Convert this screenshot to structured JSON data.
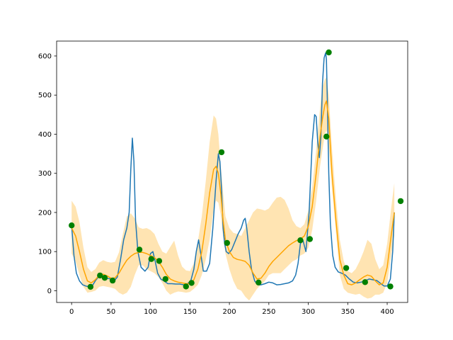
{
  "chart_data": {
    "type": "line",
    "title": "",
    "xlabel": "",
    "ylabel": "",
    "xlim": [
      -19,
      426
    ],
    "ylim": [
      -30,
      638
    ],
    "grid": false,
    "legend": "none",
    "xticks": [
      0,
      50,
      100,
      150,
      200,
      250,
      300,
      350,
      400
    ],
    "yticks": [
      0,
      100,
      200,
      300,
      400,
      500,
      600
    ],
    "colors": {
      "blue_line": "#1f77b4",
      "orange_line": "#ffa500",
      "band": "#ffa500",
      "points": "#008000",
      "axes": "#000000"
    },
    "series": [
      {
        "kind": "line",
        "color": "#1f77b4",
        "x": [
          0,
          3,
          6,
          10,
          14,
          18,
          22,
          26,
          30,
          35,
          40,
          45,
          50,
          55,
          58,
          62,
          66,
          70,
          73,
          75,
          77,
          79,
          81,
          84,
          88,
          93,
          97,
          100,
          103,
          106,
          109,
          113,
          117,
          122,
          127,
          132,
          137,
          142,
          147,
          151,
          155,
          158,
          161,
          164,
          167,
          171,
          175,
          179,
          183,
          186,
          188,
          190,
          192,
          194,
          196,
          199,
          203,
          207,
          211,
          215,
          218,
          220,
          222,
          225,
          228,
          232,
          236,
          240,
          245,
          250,
          255,
          260,
          265,
          270,
          275,
          280,
          284,
          287,
          290,
          293,
          297,
          301,
          305,
          308,
          310,
          312,
          314,
          316,
          318,
          320,
          322,
          323,
          324,
          326,
          328,
          331,
          334,
          338,
          342,
          347,
          352,
          357,
          362,
          367,
          372,
          377,
          382,
          387,
          392,
          396,
          400,
          404,
          407,
          409
        ],
        "y": [
          165,
          90,
          45,
          25,
          15,
          12,
          10,
          12,
          25,
          38,
          35,
          32,
          30,
          28,
          35,
          80,
          130,
          160,
          200,
          310,
          390,
          330,
          180,
          100,
          60,
          50,
          60,
          95,
          100,
          75,
          45,
          30,
          25,
          18,
          18,
          17,
          17,
          15,
          18,
          25,
          55,
          100,
          130,
          90,
          50,
          50,
          70,
          160,
          280,
          350,
          330,
          260,
          160,
          120,
          100,
          95,
          105,
          125,
          145,
          160,
          180,
          185,
          160,
          100,
          55,
          25,
          15,
          15,
          18,
          22,
          20,
          15,
          16,
          18,
          20,
          25,
          40,
          70,
          120,
          130,
          100,
          200,
          380,
          450,
          445,
          380,
          340,
          395,
          530,
          595,
          608,
          590,
          500,
          300,
          170,
          90,
          60,
          48,
          45,
          40,
          30,
          22,
          20,
          22,
          25,
          30,
          28,
          26,
          18,
          12,
          12,
          30,
          100,
          200
        ]
      },
      {
        "kind": "line",
        "color": "#ffa500",
        "x": [
          0,
          5,
          10,
          15,
          20,
          25,
          30,
          35,
          40,
          45,
          50,
          55,
          60,
          65,
          70,
          75,
          80,
          85,
          90,
          95,
          100,
          105,
          110,
          115,
          120,
          125,
          130,
          135,
          140,
          145,
          150,
          155,
          160,
          165,
          170,
          175,
          180,
          183,
          186,
          189,
          192,
          195,
          200,
          205,
          210,
          215,
          220,
          225,
          230,
          235,
          240,
          245,
          250,
          255,
          260,
          265,
          270,
          275,
          280,
          285,
          290,
          295,
          300,
          305,
          310,
          315,
          318,
          321,
          323,
          326,
          330,
          335,
          340,
          345,
          350,
          355,
          360,
          365,
          370,
          375,
          380,
          385,
          390,
          395,
          400,
          405,
          409
        ],
        "y": [
          160,
          140,
          100,
          55,
          25,
          20,
          28,
          40,
          42,
          38,
          32,
          33,
          45,
          62,
          78,
          88,
          95,
          98,
          98,
          95,
          90,
          85,
          75,
          60,
          42,
          30,
          25,
          22,
          20,
          18,
          18,
          28,
          55,
          100,
          170,
          250,
          310,
          318,
          300,
          250,
          180,
          130,
          100,
          85,
          80,
          78,
          75,
          65,
          45,
          30,
          32,
          45,
          62,
          75,
          85,
          95,
          105,
          115,
          122,
          128,
          132,
          140,
          165,
          215,
          300,
          395,
          440,
          475,
          485,
          440,
          300,
          180,
          80,
          40,
          18,
          15,
          20,
          28,
          35,
          40,
          37,
          25,
          15,
          20,
          60,
          140,
          200
        ]
      },
      {
        "kind": "band",
        "color": "#ffa500",
        "x": [
          0,
          5,
          10,
          15,
          20,
          25,
          30,
          35,
          40,
          45,
          50,
          55,
          60,
          65,
          70,
          75,
          80,
          85,
          90,
          95,
          100,
          105,
          110,
          115,
          120,
          125,
          130,
          135,
          140,
          145,
          150,
          155,
          160,
          165,
          170,
          175,
          180,
          183,
          186,
          189,
          192,
          195,
          200,
          205,
          210,
          215,
          220,
          225,
          230,
          235,
          240,
          245,
          250,
          255,
          260,
          265,
          270,
          275,
          280,
          285,
          290,
          295,
          300,
          305,
          310,
          315,
          318,
          321,
          323,
          326,
          330,
          335,
          340,
          345,
          350,
          355,
          360,
          365,
          370,
          375,
          380,
          385,
          390,
          395,
          400,
          405,
          409
        ],
        "upper": [
          230,
          215,
          175,
          110,
          60,
          48,
          55,
          72,
          78,
          74,
          72,
          74,
          98,
          145,
          190,
          198,
          185,
          162,
          158,
          160,
          155,
          145,
          120,
          100,
          95,
          112,
          128,
          90,
          62,
          52,
          50,
          70,
          125,
          190,
          280,
          380,
          448,
          440,
          400,
          320,
          250,
          190,
          160,
          148,
          145,
          140,
          160,
          180,
          200,
          210,
          208,
          205,
          210,
          225,
          238,
          240,
          232,
          210,
          180,
          165,
          160,
          170,
          205,
          265,
          360,
          470,
          520,
          540,
          545,
          500,
          365,
          235,
          130,
          75,
          50,
          45,
          55,
          75,
          100,
          130,
          120,
          80,
          55,
          65,
          120,
          210,
          275
        ],
        "lower": [
          95,
          75,
          40,
          10,
          -5,
          -3,
          0,
          10,
          12,
          10,
          8,
          5,
          -5,
          -10,
          -5,
          10,
          40,
          65,
          65,
          55,
          50,
          45,
          35,
          20,
          0,
          -10,
          -5,
          -2,
          -3,
          -5,
          -3,
          5,
          15,
          40,
          80,
          130,
          210,
          230,
          225,
          195,
          140,
          95,
          55,
          25,
          5,
          0,
          -15,
          -25,
          -10,
          5,
          15,
          25,
          40,
          45,
          45,
          45,
          55,
          65,
          75,
          80,
          90,
          95,
          110,
          155,
          230,
          320,
          360,
          400,
          410,
          370,
          260,
          150,
          40,
          5,
          -5,
          -8,
          -10,
          -8,
          -15,
          -20,
          -18,
          -10,
          -10,
          -5,
          20,
          90,
          140
        ]
      },
      {
        "kind": "scatter",
        "color": "#008000",
        "x": [
          0,
          24,
          36,
          42,
          52,
          86,
          101,
          111,
          119,
          145,
          152,
          190,
          197,
          237,
          290,
          302,
          323,
          326,
          348,
          372,
          404,
          417
        ],
        "y": [
          167,
          10,
          39,
          33,
          26,
          105,
          81,
          76,
          30,
          11,
          20,
          354,
          122,
          21,
          129,
          132,
          394,
          609,
          58,
          22,
          11,
          229
        ]
      }
    ]
  }
}
